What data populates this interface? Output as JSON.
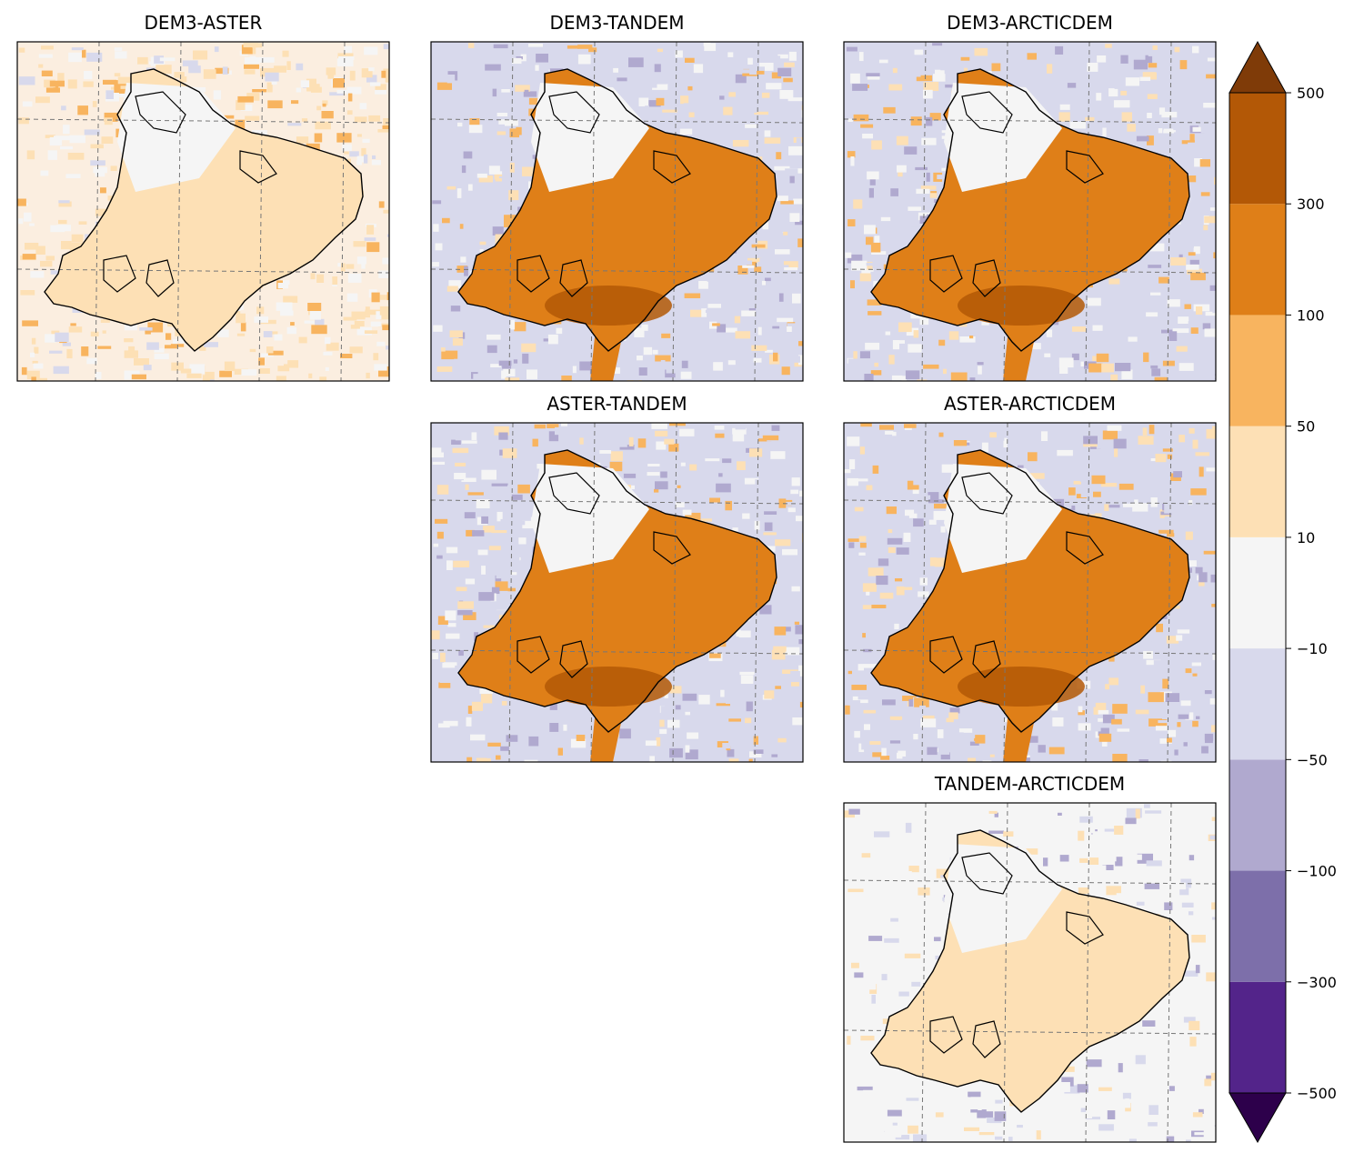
{
  "chart_data": {
    "type": "heatmap",
    "description_panels_layout": "upper-triangular 3x3 grid of difference maps",
    "panels": [
      {
        "title": "DEM3-ASTER",
        "row": 0,
        "col": 0,
        "glacier_mean_class": 10,
        "surround": "mixed_light"
      },
      {
        "title": "DEM3-TANDEM",
        "row": 0,
        "col": 1,
        "glacier_mean_class": 100,
        "surround": "mixed_purple"
      },
      {
        "title": "DEM3-ARCTICDEM",
        "row": 0,
        "col": 2,
        "glacier_mean_class": 100,
        "surround": "mixed_purple"
      },
      {
        "title": "ASTER-TANDEM",
        "row": 1,
        "col": 1,
        "glacier_mean_class": 100,
        "surround": "mixed_purple"
      },
      {
        "title": "ASTER-ARCTICDEM",
        "row": 1,
        "col": 2,
        "glacier_mean_class": 100,
        "surround": "mixed_purple"
      },
      {
        "title": "TANDEM-ARCTICDEM",
        "row": 2,
        "col": 2,
        "glacier_mean_class": 10,
        "surround": "mostly_white"
      }
    ],
    "colorbar": {
      "levels": [
        -500,
        -300,
        -100,
        -50,
        -10,
        10,
        50,
        100,
        300,
        500
      ],
      "tick_labels": [
        "500",
        "300",
        "100",
        "50",
        "10",
        "−10",
        "−50",
        "−100",
        "−300",
        "−500"
      ],
      "colors": [
        "#53248a",
        "#7d6faa",
        "#b0a9cf",
        "#d8d9ec",
        "#f5f5f5",
        "#fde0b5",
        "#f8b45f",
        "#df7f18",
        "#b35806"
      ],
      "extend_low_color": "#2d004b",
      "extend_high_color": "#7f3b08",
      "extend": "both"
    },
    "grid": true
  }
}
